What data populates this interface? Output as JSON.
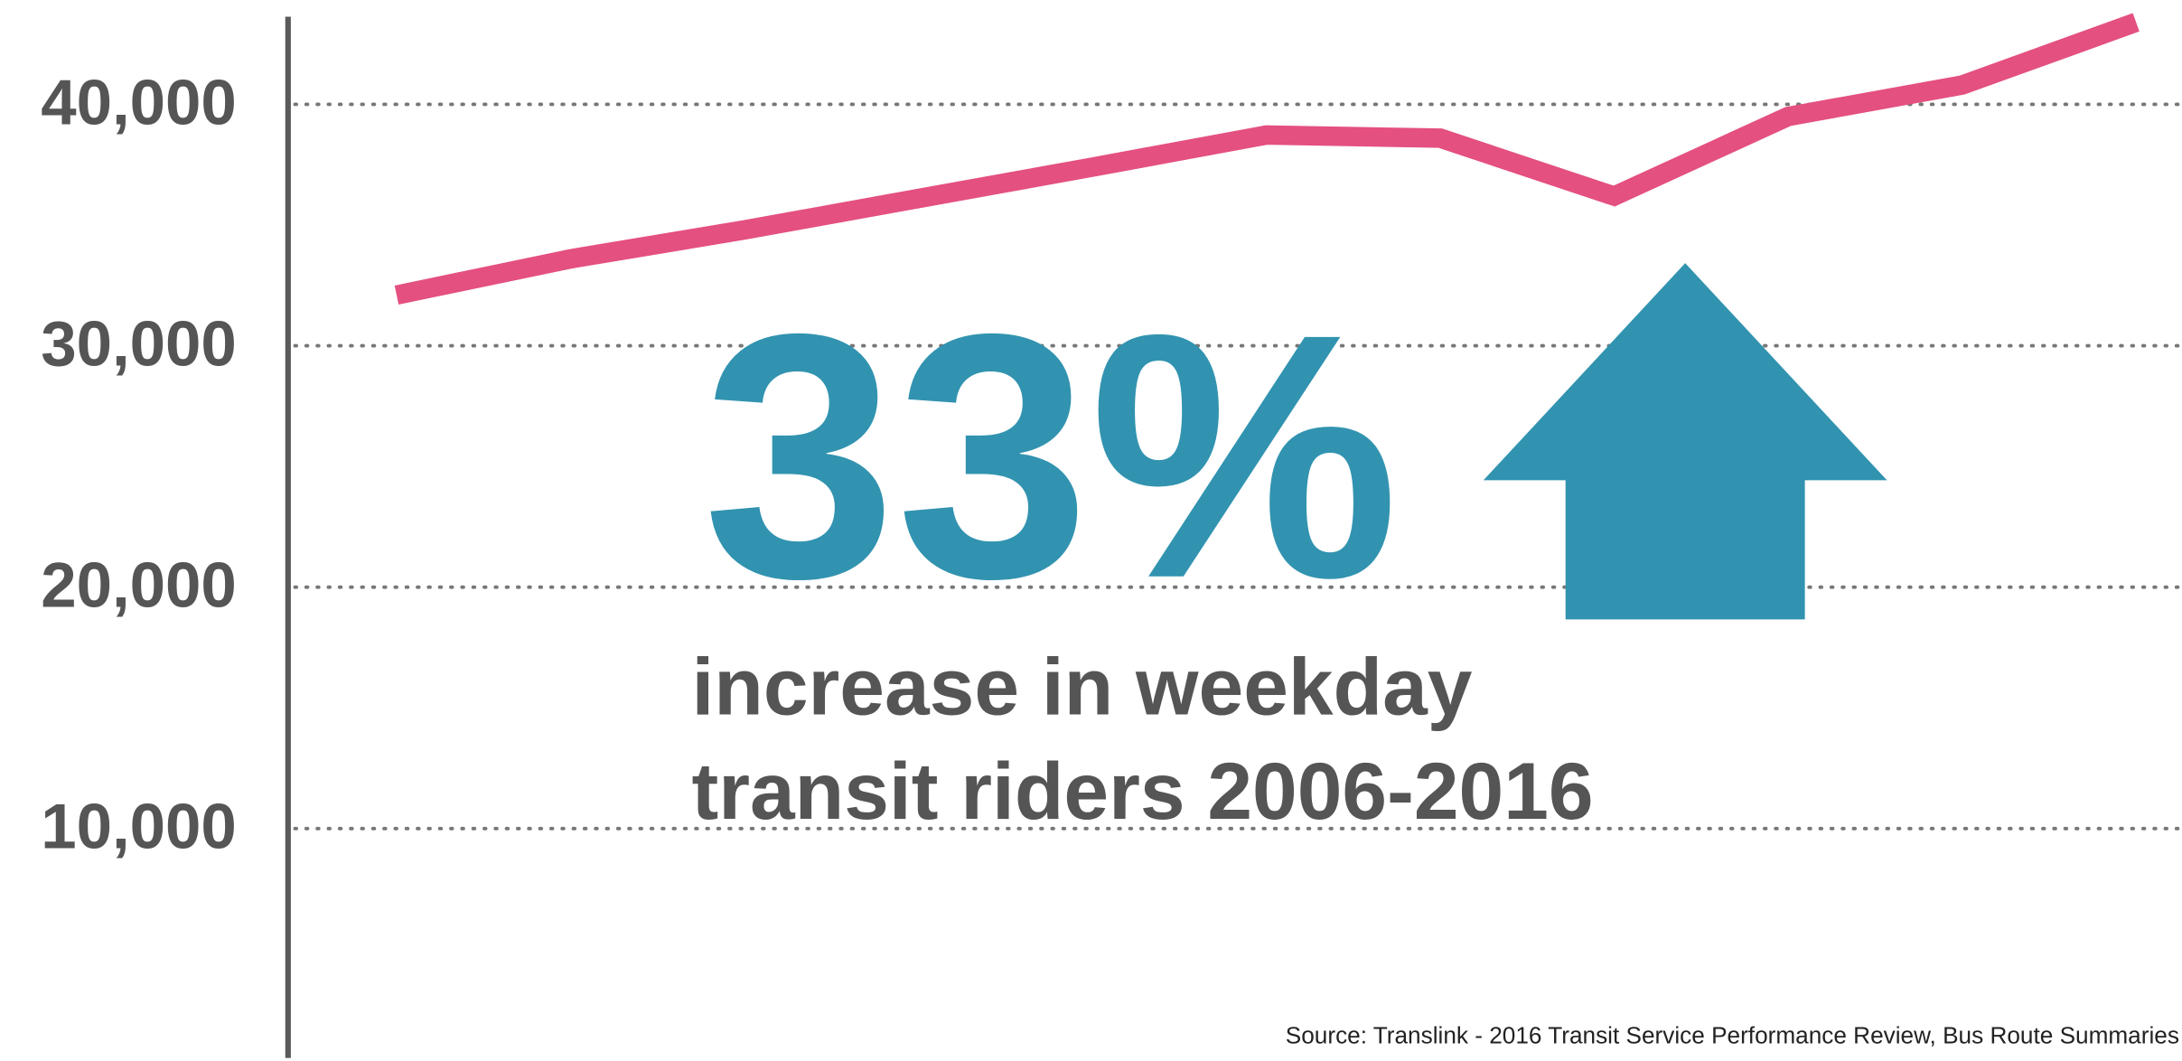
{
  "chart_data": {
    "type": "line",
    "values": [
      32100,
      33600,
      34800,
      36100,
      37400,
      38730,
      38600,
      36200,
      39500,
      40800,
      43400
    ],
    "color": "#e4507f",
    "ylim": [
      500,
      43630
    ],
    "yticks": [
      {
        "value": 10000,
        "label": "10,000"
      },
      {
        "value": 20000,
        "label": "20,000"
      },
      {
        "value": 30000,
        "label": "30,000"
      },
      {
        "value": 40000,
        "label": "40,000"
      }
    ],
    "grid": true,
    "annotations": [
      "33%",
      "increase in weekday",
      "transit riders 2006-2016"
    ],
    "source": "Source: Translink - 2016 Transit Service Performance Review, Bus Route Summaries"
  }
}
